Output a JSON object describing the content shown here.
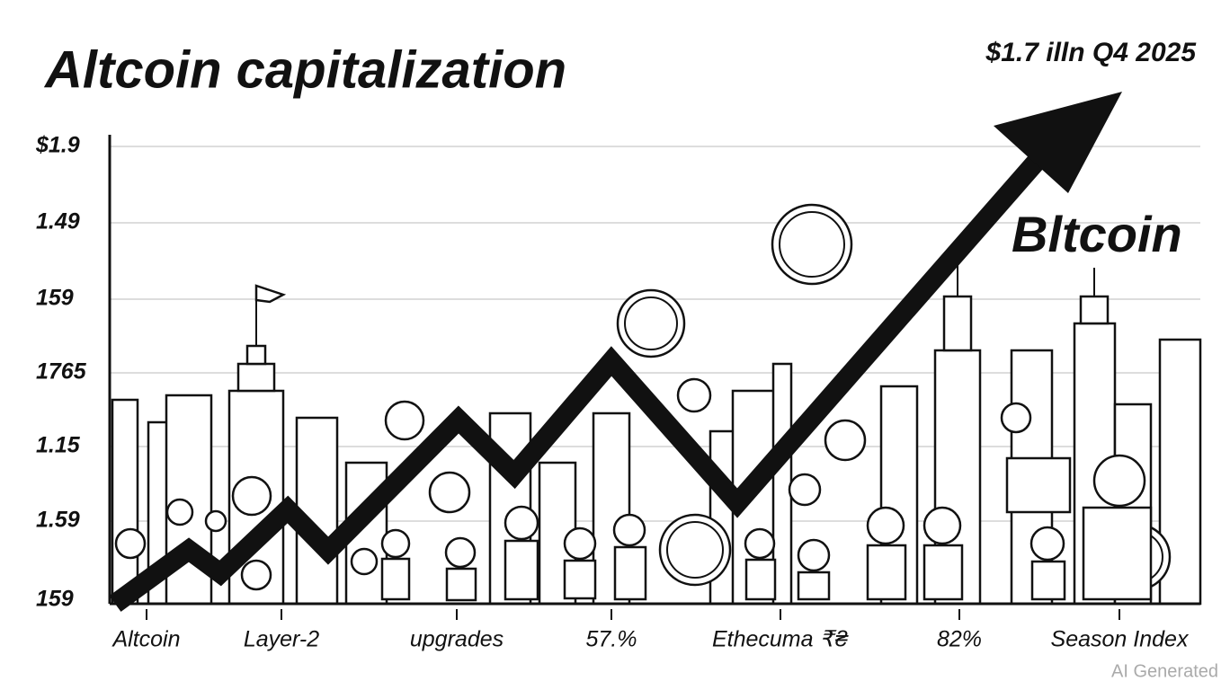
{
  "header": {
    "title": "Altcoin capitalization",
    "annotation": "$1.7 illn Q4 2025"
  },
  "y_labels": [
    "$1.9",
    "1.49",
    "159",
    "1765",
    "1.15",
    "1.59",
    "159"
  ],
  "x_labels": [
    "Altcoin",
    "Layer-2",
    "upgrades",
    "57.%",
    "Ethecuma ₹₴",
    "82%",
    "Season Index"
  ],
  "brand": "Bltcoin",
  "watermark": "AI Generated"
}
